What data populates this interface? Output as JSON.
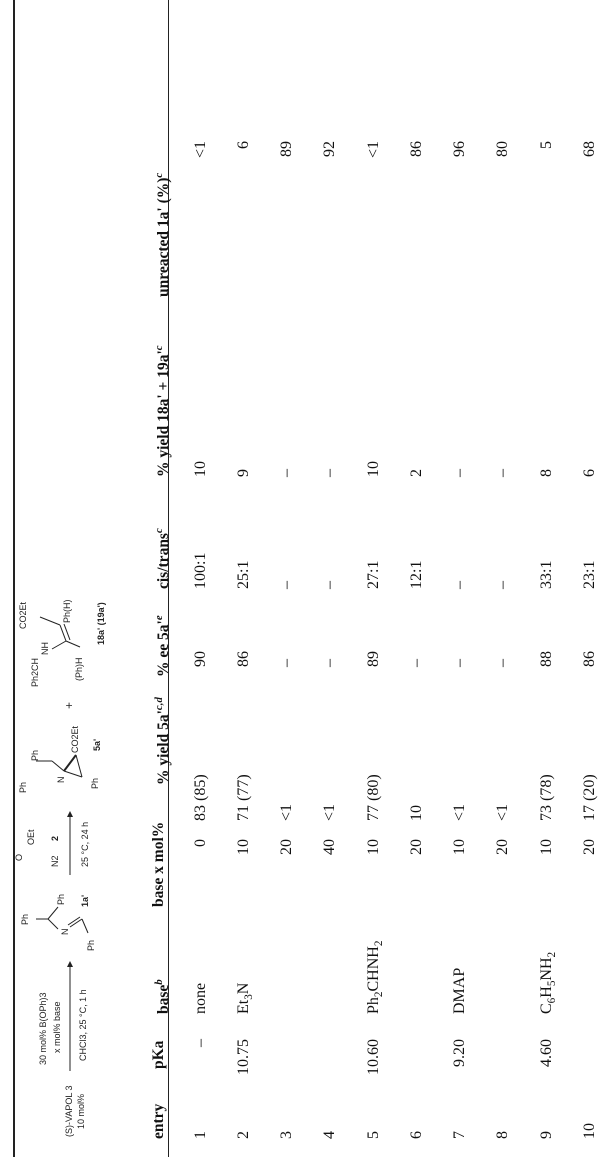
{
  "scheme": {
    "catalyst": "(S)-VAPOL 3",
    "catalyst_loading": "10 mol%",
    "reagent1": "30 mol% B(OPh)3",
    "reagent2": "x mol% base",
    "conditions1": "CHCl3, 25 °C, 1 h",
    "imine_label": "1a'",
    "imine_n": "N",
    "ph": "Ph",
    "diazo_label": "2",
    "diazo_oet": "OEt",
    "diazo_n2": "N2",
    "diazo_o": "O",
    "conditions2": "25 °C, 24 h",
    "aziridine_label": "5a'",
    "aziridine_co2et": "CO2Et",
    "plus": "+",
    "enamine_top": "Ph2CH",
    "enamine_nh": "NH",
    "enamine_co2et": "CO2Et",
    "enamine_ph_h": "Ph(H)",
    "enamine_h_ph": "(Ph)H",
    "enamine_label": "18a' (19a')"
  },
  "table": {
    "headers": {
      "entry": "entry",
      "pka": "pKa",
      "base": "base",
      "base_sup": "b",
      "base_mol": "base x mol%",
      "yield5a": "% yield 5a'",
      "yield5a_sup": "c,d",
      "ee5a": "% ee 5a'",
      "ee5a_sup": "e",
      "cistrans": "cis/trans",
      "cistrans_sup": "c",
      "yield18": "% yield 18a' + 19a'",
      "yield18_sup": "c",
      "unreacted": "unreacted 1a' (%)",
      "unreacted_sup": "c"
    },
    "rows": [
      {
        "entry": "1",
        "pka": "–",
        "base": "none",
        "mol": "0",
        "yield5a": "83 (85)",
        "ee": "90",
        "cistrans": "100:1",
        "yield18": "10",
        "unreacted": "<1"
      },
      {
        "entry": "2",
        "pka": "10.75",
        "base": "Et3N",
        "mol": "10",
        "yield5a": "71 (77)",
        "ee": "86",
        "cistrans": "25:1",
        "yield18": "9",
        "unreacted": "6"
      },
      {
        "entry": "3",
        "pka": "",
        "base": "",
        "mol": "20",
        "yield5a": "<1",
        "ee": "–",
        "cistrans": "–",
        "yield18": "–",
        "unreacted": "89"
      },
      {
        "entry": "4",
        "pka": "",
        "base": "",
        "mol": "40",
        "yield5a": "<1",
        "ee": "–",
        "cistrans": "–",
        "yield18": "–",
        "unreacted": "92"
      },
      {
        "entry": "5",
        "pka": "10.60",
        "base": "Ph2CHNH2",
        "mol": "10",
        "yield5a": "77 (80)",
        "ee": "89",
        "cistrans": "27:1",
        "yield18": "10",
        "unreacted": "<1"
      },
      {
        "entry": "6",
        "pka": "",
        "base": "",
        "mol": "20",
        "yield5a": "10",
        "ee": "–",
        "cistrans": "12:1",
        "yield18": "2",
        "unreacted": "86"
      },
      {
        "entry": "7",
        "pka": "9.20",
        "base": "DMAP",
        "mol": "10",
        "yield5a": "<1",
        "ee": "–",
        "cistrans": "–",
        "yield18": "–",
        "unreacted": "96"
      },
      {
        "entry": "8",
        "pka": "",
        "base": "",
        "mol": "20",
        "yield5a": "<1",
        "ee": "–",
        "cistrans": "–",
        "yield18": "–",
        "unreacted": "80"
      },
      {
        "entry": "9",
        "pka": "4.60",
        "base": "C6H5NH2",
        "mol": "10",
        "yield5a": "73 (78)",
        "ee": "88",
        "cistrans": "33:1",
        "yield18": "8",
        "unreacted": "5"
      },
      {
        "entry": "10",
        "pka": "",
        "base": "",
        "mol": "20",
        "yield5a": "17 (20)",
        "ee": "86",
        "cistrans": "23:1",
        "yield18": "6",
        "unreacted": "68"
      }
    ]
  }
}
